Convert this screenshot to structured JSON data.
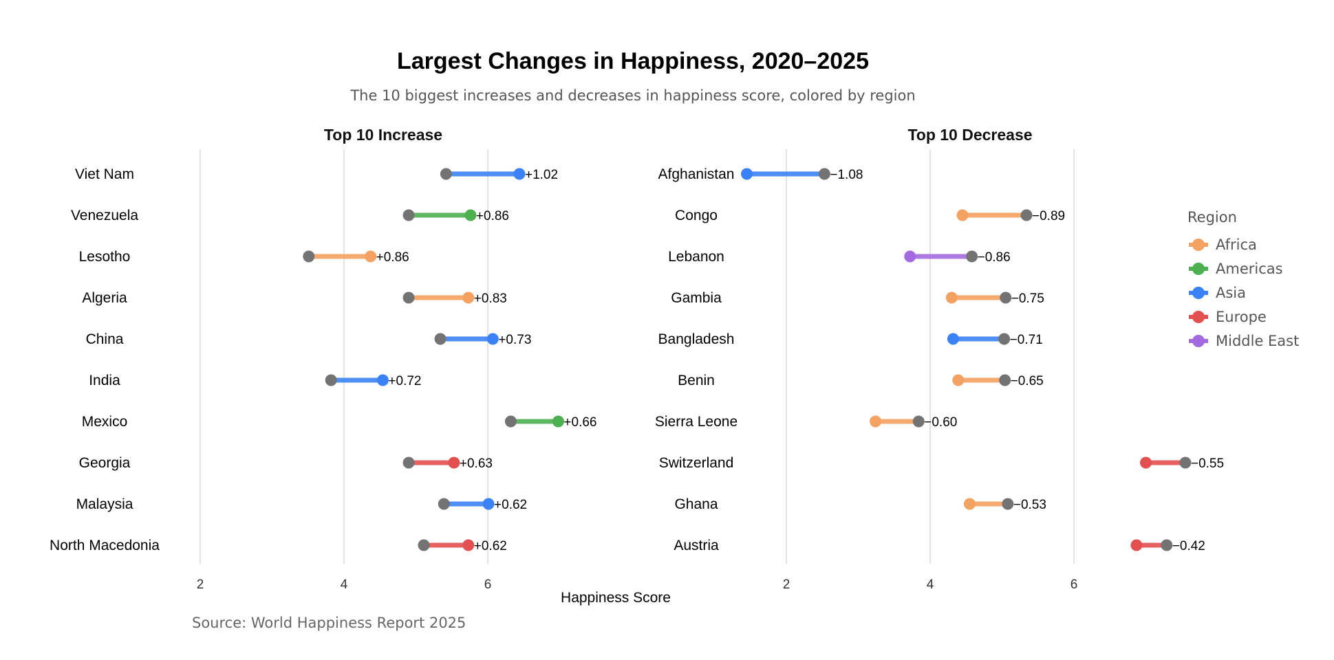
{
  "chart_data": {
    "type": "dumbbell",
    "title": "Largest Changes in Happiness, 2020–2025",
    "subtitle": "The 10 biggest increases and decreases in happiness score, colored by region",
    "xlabel": "Happiness Score",
    "caption": "Source: World Happiness Report 2025",
    "xticks": [
      2,
      4,
      6
    ],
    "xlim": [
      1.1,
      7.6
    ],
    "start_color": "#737373",
    "legend": {
      "title": "Region",
      "position": "right",
      "items": [
        {
          "name": "Africa",
          "color": "#F4A261"
        },
        {
          "name": "Americas",
          "color": "#4CAF50"
        },
        {
          "name": "Asia",
          "color": "#3B82F6"
        },
        {
          "name": "Europe",
          "color": "#E35050"
        },
        {
          "name": "Middle East",
          "color": "#A46AE0"
        }
      ]
    },
    "panels": [
      {
        "title": "Top 10 Increase",
        "rows": [
          {
            "country": "Viet Nam",
            "region": "Asia",
            "score_2020": 5.42,
            "score_2025": 6.44,
            "change": "+1.02"
          },
          {
            "country": "Venezuela",
            "region": "Americas",
            "score_2020": 4.9,
            "score_2025": 5.76,
            "change": "+0.86"
          },
          {
            "country": "Lesotho",
            "region": "Africa",
            "score_2020": 3.51,
            "score_2025": 4.37,
            "change": "+0.86"
          },
          {
            "country": "Algeria",
            "region": "Africa",
            "score_2020": 4.9,
            "score_2025": 5.73,
            "change": "+0.83"
          },
          {
            "country": "China",
            "region": "Asia",
            "score_2020": 5.34,
            "score_2025": 6.07,
            "change": "+0.73"
          },
          {
            "country": "India",
            "region": "Asia",
            "score_2020": 3.82,
            "score_2025": 4.54,
            "change": "+0.72"
          },
          {
            "country": "Mexico",
            "region": "Americas",
            "score_2020": 6.32,
            "score_2025": 6.98,
            "change": "+0.66"
          },
          {
            "country": "Georgia",
            "region": "Europe",
            "score_2020": 4.9,
            "score_2025": 5.53,
            "change": "+0.63"
          },
          {
            "country": "Malaysia",
            "region": "Asia",
            "score_2020": 5.39,
            "score_2025": 6.01,
            "change": "+0.62"
          },
          {
            "country": "North Macedonia",
            "region": "Europe",
            "score_2020": 5.11,
            "score_2025": 5.73,
            "change": "+0.62"
          }
        ]
      },
      {
        "title": "Top 10 Decrease",
        "rows": [
          {
            "country": "Afghanistan",
            "region": "Asia",
            "score_2020": 2.53,
            "score_2025": 1.45,
            "change": "−1.08"
          },
          {
            "country": "Congo",
            "region": "Africa",
            "score_2020": 5.34,
            "score_2025": 4.45,
            "change": "−0.89"
          },
          {
            "country": "Lebanon",
            "region": "Middle East",
            "score_2020": 4.58,
            "score_2025": 3.72,
            "change": "−0.86"
          },
          {
            "country": "Gambia",
            "region": "Africa",
            "score_2020": 5.05,
            "score_2025": 4.3,
            "change": "−0.75"
          },
          {
            "country": "Bangladesh",
            "region": "Asia",
            "score_2020": 5.03,
            "score_2025": 4.32,
            "change": "−0.71"
          },
          {
            "country": "Benin",
            "region": "Africa",
            "score_2020": 5.04,
            "score_2025": 4.39,
            "change": "−0.65"
          },
          {
            "country": "Sierra Leone",
            "region": "Africa",
            "score_2020": 3.84,
            "score_2025": 3.24,
            "change": "−0.60"
          },
          {
            "country": "Switzerland",
            "region": "Europe",
            "score_2020": 7.55,
            "score_2025": 7.0,
            "change": "−0.55"
          },
          {
            "country": "Ghana",
            "region": "Africa",
            "score_2020": 5.08,
            "score_2025": 4.55,
            "change": "−0.53"
          },
          {
            "country": "Austria",
            "region": "Europe",
            "score_2020": 7.29,
            "score_2025": 6.87,
            "change": "−0.42"
          }
        ]
      }
    ]
  }
}
